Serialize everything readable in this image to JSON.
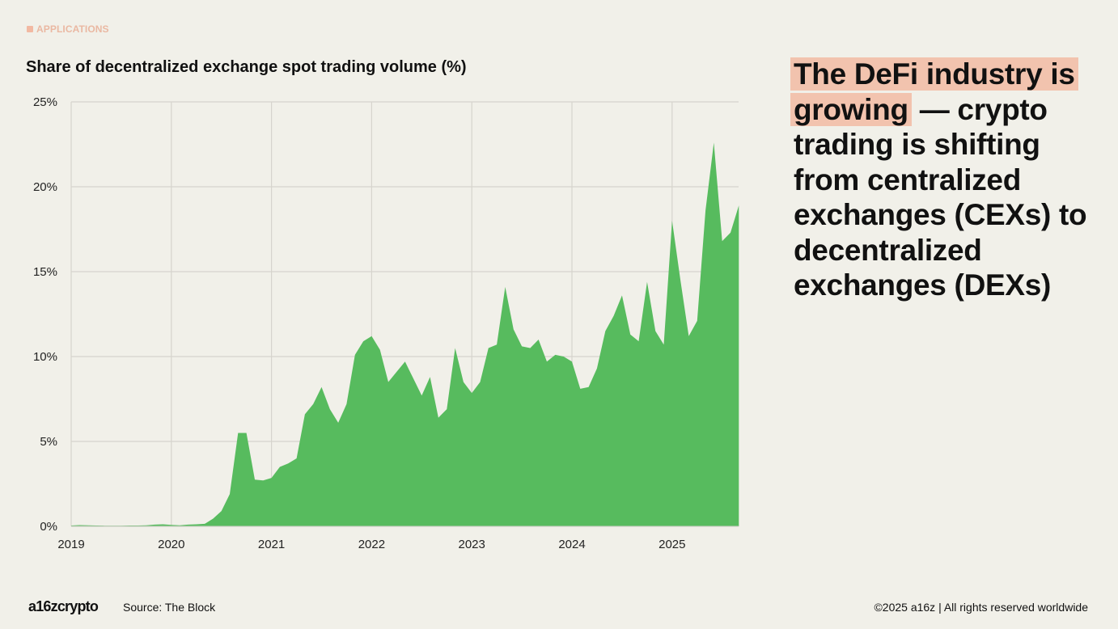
{
  "section_label": "APPLICATIONS",
  "headline": {
    "highlight": "The DeFi industry is growing",
    "rest": " — crypto trading is shifting from centralized exchanges (CEXs) to decentralized exchanges (DEXs)"
  },
  "footer": {
    "logo": "a16zcrypto",
    "source": "Source: The Block",
    "copyright": "©2025 a16z | All rights reserved worldwide"
  },
  "colors": {
    "background": "#f1f0e9",
    "area": "#57bb5e",
    "highlight": "#f2c3ae",
    "section": "#eab8a2"
  },
  "chart_data": {
    "type": "area",
    "title": "Share of decentralized exchange spot trading volume (%)",
    "xlabel": "",
    "ylabel": "",
    "ylim": [
      0,
      25
    ],
    "y_ticks": [
      "0%",
      "5%",
      "10%",
      "15%",
      "20%",
      "25%"
    ],
    "x_ticks": [
      "2019",
      "2020",
      "2021",
      "2022",
      "2023",
      "2024",
      "2025"
    ],
    "grid": true,
    "legend": "none",
    "x": [
      "2019-01",
      "2019-02",
      "2019-03",
      "2019-04",
      "2019-05",
      "2019-06",
      "2019-07",
      "2019-08",
      "2019-09",
      "2019-10",
      "2019-11",
      "2019-12",
      "2020-01",
      "2020-02",
      "2020-03",
      "2020-04",
      "2020-05",
      "2020-06",
      "2020-07",
      "2020-08",
      "2020-09",
      "2020-10",
      "2020-11",
      "2020-12",
      "2021-01",
      "2021-02",
      "2021-03",
      "2021-04",
      "2021-05",
      "2021-06",
      "2021-07",
      "2021-08",
      "2021-09",
      "2021-10",
      "2021-11",
      "2021-12",
      "2022-01",
      "2022-02",
      "2022-03",
      "2022-04",
      "2022-05",
      "2022-06",
      "2022-07",
      "2022-08",
      "2022-09",
      "2022-10",
      "2022-11",
      "2022-12",
      "2023-01",
      "2023-02",
      "2023-03",
      "2023-04",
      "2023-05",
      "2023-06",
      "2023-07",
      "2023-08",
      "2023-09",
      "2023-10",
      "2023-11",
      "2023-12",
      "2024-01",
      "2024-02",
      "2024-03",
      "2024-04",
      "2024-05",
      "2024-06",
      "2024-07",
      "2024-08",
      "2024-09",
      "2024-10",
      "2024-11",
      "2024-12",
      "2025-01",
      "2025-02",
      "2025-03",
      "2025-04",
      "2025-05",
      "2025-06",
      "2025-07",
      "2025-08",
      "2025-09"
    ],
    "values": [
      0.05,
      0.07,
      0.06,
      0.05,
      0.04,
      0.04,
      0.04,
      0.05,
      0.05,
      0.06,
      0.1,
      0.12,
      0.08,
      0.06,
      0.1,
      0.12,
      0.15,
      0.45,
      0.9,
      1.9,
      5.5,
      5.5,
      2.75,
      2.7,
      2.85,
      3.5,
      3.7,
      4.0,
      6.6,
      7.2,
      8.2,
      6.9,
      6.1,
      7.2,
      10.1,
      10.9,
      11.2,
      10.4,
      8.5,
      9.1,
      9.7,
      8.7,
      7.7,
      8.8,
      6.4,
      6.9,
      10.5,
      8.5,
      7.85,
      8.5,
      10.5,
      10.7,
      14.1,
      11.6,
      10.6,
      10.5,
      11.0,
      9.7,
      10.1,
      10.0,
      9.7,
      8.1,
      8.2,
      9.3,
      11.5,
      12.4,
      13.6,
      11.3,
      10.9,
      14.4,
      11.5,
      10.7,
      18.0,
      14.5,
      11.2,
      12.1,
      18.6,
      22.6,
      16.8,
      17.3,
      18.9
    ]
  }
}
